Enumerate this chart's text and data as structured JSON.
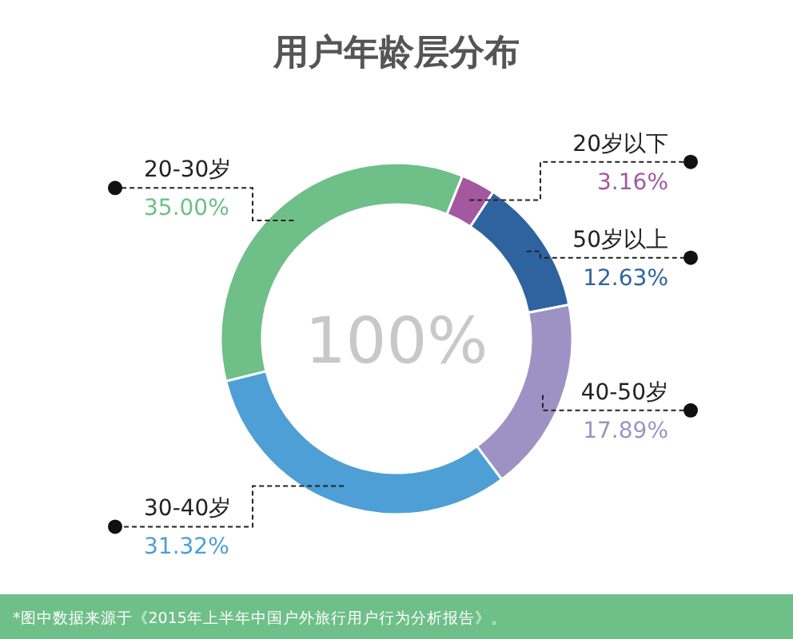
{
  "chart_data": {
    "type": "donut",
    "title": "用户年龄层分布",
    "categories": [
      "20岁以下",
      "50岁以上",
      "40-50岁",
      "30-40岁",
      "20-30岁"
    ],
    "values": [
      3.16,
      12.63,
      17.89,
      31.32,
      35.0
    ],
    "value_labels": [
      "3.16%",
      "12.63%",
      "17.89%",
      "31.32%",
      "35.00%"
    ],
    "colors": [
      "#a3589f",
      "#2f63a0",
      "#9c93c4",
      "#4d9fd6",
      "#6fbf88"
    ],
    "annotations": [
      "100%",
      "*图中数据来源于《2015年上半年中国户外旅行用户行为分析报告》。"
    ]
  }
}
